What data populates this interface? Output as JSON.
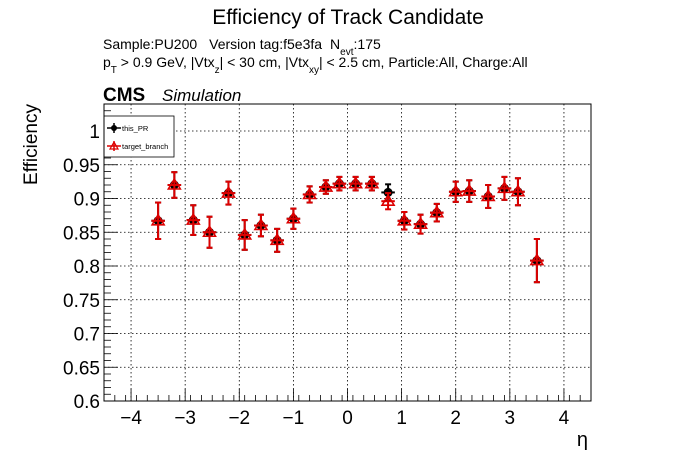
{
  "title": "Efficiency of Track Candidate",
  "info": {
    "sample": "Sample:PU200",
    "version": "Version tag:f5e3fa",
    "nevt_label": "N",
    "nevt_sub": "evt",
    "nevt_value": ":175",
    "pt_p": "p",
    "pt_sub": "T",
    "pt_rest1": " > 0.9 GeV, |Vtx",
    "vtxz_sub": "z",
    "pt_rest2": "| < 30 cm, |Vtx",
    "vtxxy_sub": "xy",
    "pt_rest3": "| < 2.5 cm, Particle:All, Charge:All"
  },
  "cms": {
    "label": "CMS",
    "sublabel": "Simulation"
  },
  "colors": {
    "series1": "#000000",
    "series2": "#dd0000",
    "grid": "#000000",
    "frame": "#000000"
  },
  "chart_data": {
    "type": "scatter",
    "xlabel": "η",
    "ylabel": "Efficiency",
    "xlim": [
      -4.5,
      4.5
    ],
    "ylim": [
      0.6,
      1.04
    ],
    "grid": true,
    "legend_position": "top-left",
    "x_ticks": [
      "−4",
      "−3",
      "−2",
      "−1",
      "0",
      "1",
      "2",
      "3",
      "4"
    ],
    "x_tick_values": [
      -4,
      -3,
      -2,
      -1,
      0,
      1,
      2,
      3,
      4
    ],
    "y_ticks": [
      "0.6",
      "0.65",
      "0.7",
      "0.75",
      "0.8",
      "0.85",
      "0.9",
      "0.95",
      "1"
    ],
    "y_tick_values": [
      0.6,
      0.65,
      0.7,
      0.75,
      0.8,
      0.85,
      0.9,
      0.95,
      1.0
    ],
    "x_bin_half_width": 0.125,
    "series": [
      {
        "name": "this_PR",
        "marker": "filled-circle",
        "points": [
          {
            "x": -3.5,
            "y": 0.867,
            "err": 0.027
          },
          {
            "x": -3.2,
            "y": 0.92,
            "err": 0.019
          },
          {
            "x": -2.85,
            "y": 0.868,
            "err": 0.022
          },
          {
            "x": -2.55,
            "y": 0.85,
            "err": 0.023
          },
          {
            "x": -2.2,
            "y": 0.908,
            "err": 0.017
          },
          {
            "x": -1.9,
            "y": 0.846,
            "err": 0.022
          },
          {
            "x": -1.6,
            "y": 0.86,
            "err": 0.016
          },
          {
            "x": -1.3,
            "y": 0.838,
            "err": 0.017
          },
          {
            "x": -1.0,
            "y": 0.87,
            "err": 0.015
          },
          {
            "x": -0.7,
            "y": 0.906,
            "err": 0.012
          },
          {
            "x": -0.4,
            "y": 0.917,
            "err": 0.01
          },
          {
            "x": -0.15,
            "y": 0.922,
            "err": 0.01
          },
          {
            "x": 0.15,
            "y": 0.922,
            "err": 0.01
          },
          {
            "x": 0.45,
            "y": 0.922,
            "err": 0.01
          },
          {
            "x": 0.75,
            "y": 0.909,
            "err": 0.012
          },
          {
            "x": 1.05,
            "y": 0.867,
            "err": 0.013
          },
          {
            "x": 1.35,
            "y": 0.862,
            "err": 0.014
          },
          {
            "x": 1.65,
            "y": 0.879,
            "err": 0.013
          },
          {
            "x": 2.0,
            "y": 0.91,
            "err": 0.015
          },
          {
            "x": 2.25,
            "y": 0.911,
            "err": 0.016
          },
          {
            "x": 2.6,
            "y": 0.903,
            "err": 0.017
          },
          {
            "x": 2.9,
            "y": 0.915,
            "err": 0.017
          },
          {
            "x": 3.15,
            "y": 0.91,
            "err": 0.02
          },
          {
            "x": 3.5,
            "y": 0.808,
            "err": 0.032
          }
        ]
      },
      {
        "name": "target_branch",
        "marker": "open-triangle",
        "points": [
          {
            "x": -3.5,
            "y": 0.867,
            "err": 0.027
          },
          {
            "x": -3.2,
            "y": 0.92,
            "err": 0.019
          },
          {
            "x": -2.85,
            "y": 0.868,
            "err": 0.022
          },
          {
            "x": -2.55,
            "y": 0.85,
            "err": 0.023
          },
          {
            "x": -2.2,
            "y": 0.908,
            "err": 0.017
          },
          {
            "x": -1.9,
            "y": 0.846,
            "err": 0.022
          },
          {
            "x": -1.6,
            "y": 0.86,
            "err": 0.016
          },
          {
            "x": -1.3,
            "y": 0.838,
            "err": 0.017
          },
          {
            "x": -1.0,
            "y": 0.87,
            "err": 0.015
          },
          {
            "x": -0.7,
            "y": 0.906,
            "err": 0.012
          },
          {
            "x": -0.4,
            "y": 0.917,
            "err": 0.01
          },
          {
            "x": -0.15,
            "y": 0.922,
            "err": 0.01
          },
          {
            "x": 0.15,
            "y": 0.922,
            "err": 0.01
          },
          {
            "x": 0.45,
            "y": 0.922,
            "err": 0.01
          },
          {
            "x": 0.75,
            "y": 0.896,
            "err": 0.012
          },
          {
            "x": 1.05,
            "y": 0.867,
            "err": 0.013
          },
          {
            "x": 1.35,
            "y": 0.862,
            "err": 0.014
          },
          {
            "x": 1.65,
            "y": 0.879,
            "err": 0.013
          },
          {
            "x": 2.0,
            "y": 0.91,
            "err": 0.015
          },
          {
            "x": 2.25,
            "y": 0.911,
            "err": 0.016
          },
          {
            "x": 2.6,
            "y": 0.903,
            "err": 0.017
          },
          {
            "x": 2.9,
            "y": 0.915,
            "err": 0.017
          },
          {
            "x": 3.15,
            "y": 0.91,
            "err": 0.02
          },
          {
            "x": 3.5,
            "y": 0.808,
            "err": 0.032
          }
        ]
      }
    ]
  }
}
